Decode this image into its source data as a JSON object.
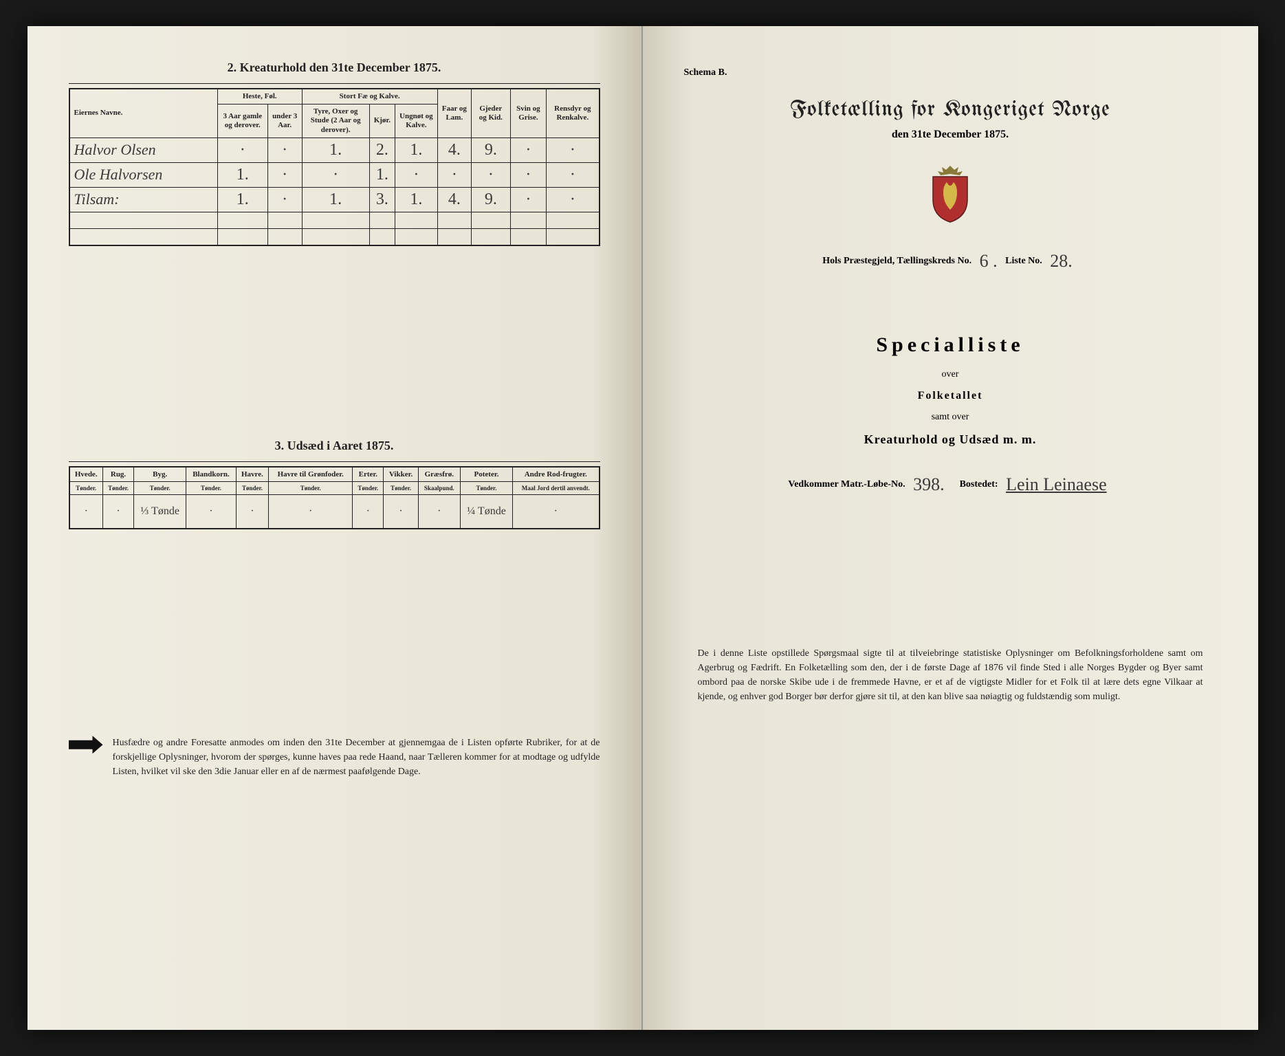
{
  "left": {
    "table2": {
      "title": "2.  Kreaturhold den 31te December 1875.",
      "col_name": "Eiernes Navne.",
      "group_heste": "Heste, Føl.",
      "group_stort": "Stort Fæ og Kalve.",
      "col_heste_1": "3 Aar gamle og derover.",
      "col_heste_2": "under 3 Aar.",
      "col_stort_1": "Tyre, Oxer og Stude (2 Aar og derover).",
      "col_stort_2": "Kjør.",
      "col_stort_3": "Ungnøt og Kalve.",
      "col_faar": "Faar og Lam.",
      "col_gjeder": "Gjeder og Kid.",
      "col_svin": "Svin og Grise.",
      "col_rensdyr": "Rensdyr og Renkalve.",
      "rows": [
        {
          "name": "Halvor Olsen",
          "v": [
            "·",
            "·",
            "1.",
            "2.",
            "1.",
            "4.",
            "9.",
            "·",
            "·"
          ]
        },
        {
          "name": "Ole Halvorsen",
          "v": [
            "1.",
            "·",
            "·",
            "1.",
            "·",
            "·",
            "·",
            "·",
            "·"
          ]
        },
        {
          "name": "Tilsam:",
          "v": [
            "1.",
            "·",
            "1.",
            "3.",
            "1.",
            "4.",
            "9.",
            "·",
            "·"
          ]
        }
      ]
    },
    "table3": {
      "title": "3.  Udsæd i Aaret 1875.",
      "cols": [
        {
          "h": "Hvede.",
          "u": "Tønder."
        },
        {
          "h": "Rug.",
          "u": "Tønder."
        },
        {
          "h": "Byg.",
          "u": "Tønder."
        },
        {
          "h": "Blandkorn.",
          "u": "Tønder."
        },
        {
          "h": "Havre.",
          "u": "Tønder."
        },
        {
          "h": "Havre til Grønfoder.",
          "u": "Tønder."
        },
        {
          "h": "Erter.",
          "u": "Tønder."
        },
        {
          "h": "Vikker.",
          "u": "Tønder."
        },
        {
          "h": "Græsfrø.",
          "u": "Skaalpund."
        },
        {
          "h": "Poteter.",
          "u": "Tønder."
        },
        {
          "h": "Andre Rod-frugter.",
          "u": "Maal Jord dertil anvendt."
        }
      ],
      "values": [
        "·",
        "·",
        "⅓ Tønde",
        "·",
        "·",
        "·",
        "·",
        "·",
        "·",
        "¼ Tønde",
        "·"
      ]
    },
    "footer": "Husfædre og andre Foresatte anmodes om inden den 31te December at gjennemgaa de i Listen opførte Rubriker, for at de forskjellige Oplysninger, hvorom der spørges, kunne haves paa rede Haand, naar Tælleren kommer for at modtage og udfylde Listen, hvilket vil ske den 3die Januar eller en af de nærmest paafølgende Dage."
  },
  "right": {
    "schema": "Schema B.",
    "title": "Folketælling for Kongeriget Norge",
    "subtitle": "den 31te December 1875.",
    "field_label_1": "Hols Præstegjeld,  Tællingskreds No.",
    "field_val_1": "6 .",
    "field_label_2": "Liste No.",
    "field_val_2": "28.",
    "special": "Specialliste",
    "over": "over",
    "folketallet": "Folketallet",
    "samt": "samt over",
    "kreatur": "Kreaturhold og Udsæd m. m.",
    "matr_label": "Vedkommer Matr.-Løbe-No.",
    "matr_val": "398.",
    "bosted_label": "Bostedet:",
    "bosted_val": "Lein Leinaese",
    "footer": "De i denne Liste opstillede Spørgsmaal sigte til at tilveiebringe statistiske Oplysninger om Befolkningsforholdene samt om Agerbrug og Fædrift.  En Folketælling som den, der i de første Dage af 1876 vil finde Sted i alle Norges Bygder og Byer samt ombord paa de norske Skibe ude i de fremmede Havne, er et af de vigtigste Midler for et Folk til at lære dets egne Vilkaar at kjende, og enhver god Borger bør derfor gjøre sit til, at den kan blive saa nøiagtig og fuldstændig som muligt."
  },
  "colors": {
    "paper": "#f0ede2",
    "ink": "#222222",
    "handwriting": "#3a3a3a",
    "background": "#1a1a1a"
  }
}
